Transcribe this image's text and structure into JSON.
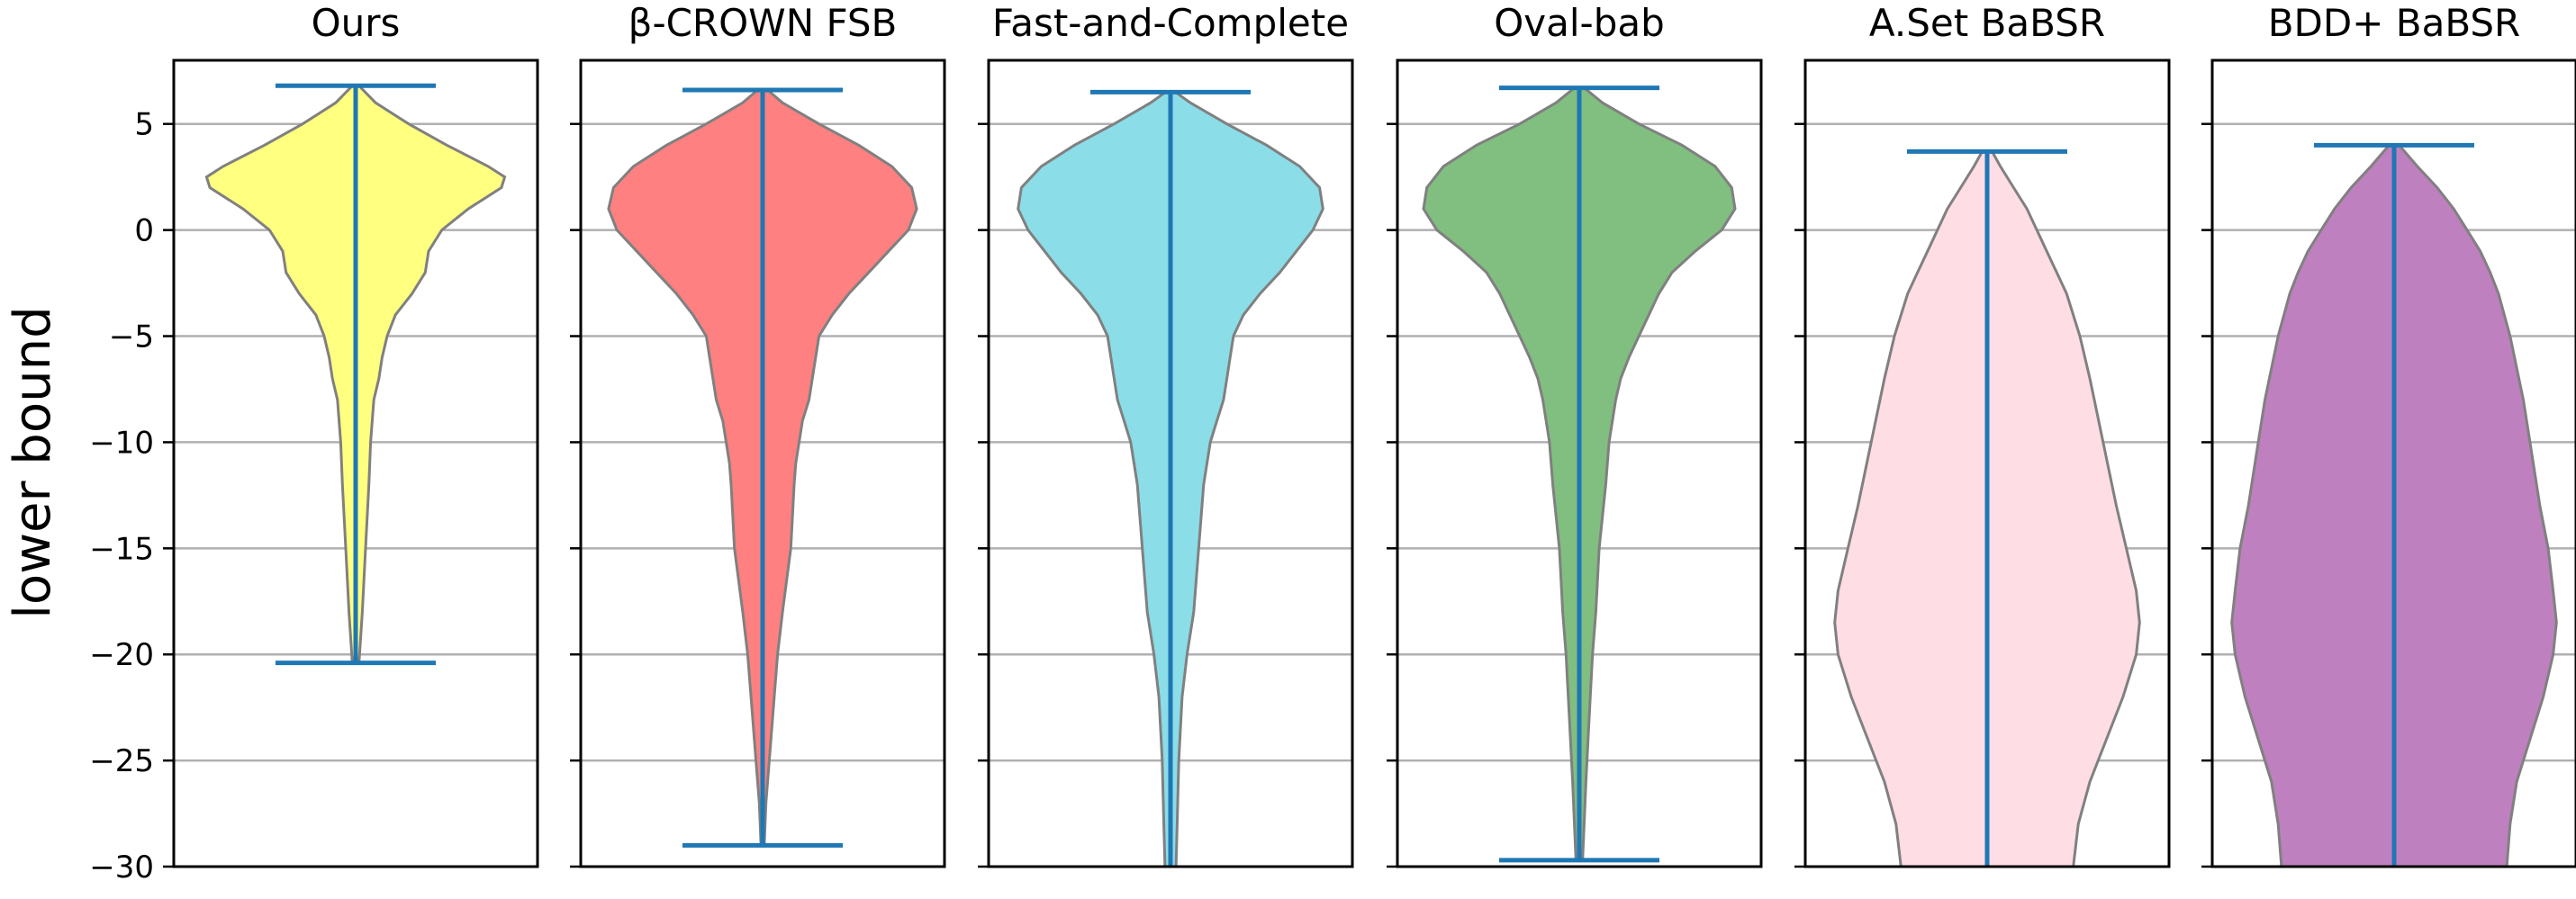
{
  "chart_data": {
    "type": "violin",
    "ylabel": "lower bound",
    "ylim": [
      -30,
      8
    ],
    "yticks": [
      5,
      0,
      -5,
      -10,
      -15,
      -20,
      -25,
      -30
    ],
    "ytick_labels": [
      "5",
      "0",
      "−5",
      "−10",
      "−15",
      "−20",
      "−25",
      "−30"
    ],
    "grid": "horizontal",
    "panels": [
      {
        "title": "Ours",
        "color": "#ffff80",
        "max": 6.8,
        "min": -20.4,
        "profile": [
          [
            6.8,
            0.02
          ],
          [
            6.0,
            0.12
          ],
          [
            5.0,
            0.32
          ],
          [
            4.0,
            0.55
          ],
          [
            3.0,
            0.8
          ],
          [
            2.5,
            0.9
          ],
          [
            2.0,
            0.88
          ],
          [
            1.0,
            0.68
          ],
          [
            0.0,
            0.52
          ],
          [
            -1.0,
            0.44
          ],
          [
            -2.0,
            0.42
          ],
          [
            -3.0,
            0.34
          ],
          [
            -4.0,
            0.24
          ],
          [
            -5.0,
            0.19
          ],
          [
            -6.0,
            0.16
          ],
          [
            -7.0,
            0.14
          ],
          [
            -8.0,
            0.11
          ],
          [
            -10.0,
            0.09
          ],
          [
            -12.0,
            0.08
          ],
          [
            -15.0,
            0.06
          ],
          [
            -18.0,
            0.04
          ],
          [
            -20.4,
            0.02
          ]
        ]
      },
      {
        "title": "β-CROWN FSB",
        "color": "#ff8080",
        "max": 6.6,
        "min": -29.0,
        "profile": [
          [
            6.6,
            0.03
          ],
          [
            6.0,
            0.12
          ],
          [
            5.0,
            0.34
          ],
          [
            4.0,
            0.58
          ],
          [
            3.0,
            0.78
          ],
          [
            2.0,
            0.9
          ],
          [
            1.0,
            0.93
          ],
          [
            0.0,
            0.88
          ],
          [
            -1.0,
            0.76
          ],
          [
            -2.0,
            0.64
          ],
          [
            -3.0,
            0.52
          ],
          [
            -4.0,
            0.42
          ],
          [
            -5.0,
            0.34
          ],
          [
            -6.0,
            0.32
          ],
          [
            -7.0,
            0.3
          ],
          [
            -8.0,
            0.28
          ],
          [
            -9.0,
            0.24
          ],
          [
            -10.0,
            0.22
          ],
          [
            -11.0,
            0.2
          ],
          [
            -12.0,
            0.19
          ],
          [
            -15.0,
            0.17
          ],
          [
            -18.0,
            0.12
          ],
          [
            -20.0,
            0.09
          ],
          [
            -22.0,
            0.07
          ],
          [
            -25.0,
            0.04
          ],
          [
            -27.0,
            0.02
          ],
          [
            -29.0,
            0.01
          ]
        ]
      },
      {
        "title": "Fast-and-Complete",
        "color": "#8bdde8",
        "max": 6.5,
        "min": -31.0,
        "profile": [
          [
            6.5,
            0.03
          ],
          [
            6.0,
            0.12
          ],
          [
            5.0,
            0.34
          ],
          [
            4.0,
            0.58
          ],
          [
            3.0,
            0.78
          ],
          [
            2.0,
            0.9
          ],
          [
            1.0,
            0.92
          ],
          [
            0.0,
            0.86
          ],
          [
            -1.0,
            0.76
          ],
          [
            -2.0,
            0.66
          ],
          [
            -3.0,
            0.54
          ],
          [
            -4.0,
            0.44
          ],
          [
            -5.0,
            0.38
          ],
          [
            -6.0,
            0.36
          ],
          [
            -7.0,
            0.34
          ],
          [
            -8.0,
            0.32
          ],
          [
            -9.0,
            0.28
          ],
          [
            -10.0,
            0.24
          ],
          [
            -11.0,
            0.22
          ],
          [
            -12.0,
            0.2
          ],
          [
            -15.0,
            0.17
          ],
          [
            -18.0,
            0.14
          ],
          [
            -20.0,
            0.1
          ],
          [
            -22.0,
            0.07
          ],
          [
            -25.0,
            0.05
          ],
          [
            -28.0,
            0.04
          ],
          [
            -31.0,
            0.03
          ]
        ]
      },
      {
        "title": "Oval-bab",
        "color": "#80bf80",
        "max": 6.7,
        "min": -29.7,
        "profile": [
          [
            6.7,
            0.03
          ],
          [
            6.0,
            0.14
          ],
          [
            5.0,
            0.36
          ],
          [
            4.0,
            0.62
          ],
          [
            3.0,
            0.82
          ],
          [
            2.0,
            0.92
          ],
          [
            1.0,
            0.94
          ],
          [
            0.0,
            0.86
          ],
          [
            -1.0,
            0.7
          ],
          [
            -2.0,
            0.56
          ],
          [
            -3.0,
            0.48
          ],
          [
            -4.0,
            0.42
          ],
          [
            -5.0,
            0.36
          ],
          [
            -6.0,
            0.3
          ],
          [
            -7.0,
            0.25
          ],
          [
            -8.0,
            0.22
          ],
          [
            -9.0,
            0.2
          ],
          [
            -10.0,
            0.18
          ],
          [
            -12.0,
            0.16
          ],
          [
            -15.0,
            0.12
          ],
          [
            -18.0,
            0.1
          ],
          [
            -20.0,
            0.08
          ],
          [
            -23.0,
            0.06
          ],
          [
            -26.0,
            0.04
          ],
          [
            -29.7,
            0.02
          ]
        ]
      },
      {
        "title": "A.Set BaBSR",
        "color": "#ffdde4",
        "max": 3.7,
        "min": -30.0,
        "profile": [
          [
            3.7,
            0.03
          ],
          [
            3.0,
            0.08
          ],
          [
            2.0,
            0.16
          ],
          [
            1.0,
            0.24
          ],
          [
            0.0,
            0.3
          ],
          [
            -1.0,
            0.36
          ],
          [
            -2.0,
            0.42
          ],
          [
            -3.0,
            0.48
          ],
          [
            -5.0,
            0.56
          ],
          [
            -7.0,
            0.62
          ],
          [
            -10.0,
            0.7
          ],
          [
            -13.0,
            0.78
          ],
          [
            -15.0,
            0.84
          ],
          [
            -17.0,
            0.9
          ],
          [
            -18.5,
            0.92
          ],
          [
            -20.0,
            0.9
          ],
          [
            -22.0,
            0.82
          ],
          [
            -24.0,
            0.72
          ],
          [
            -26.0,
            0.62
          ],
          [
            -28.0,
            0.55
          ],
          [
            -30.0,
            0.52
          ]
        ]
      },
      {
        "title": "BDD+ BaBSR",
        "color": "#bf80bf",
        "max": 4.0,
        "min": -30.0,
        "profile": [
          [
            4.0,
            0.03
          ],
          [
            3.0,
            0.14
          ],
          [
            2.0,
            0.26
          ],
          [
            1.0,
            0.36
          ],
          [
            0.0,
            0.44
          ],
          [
            -1.0,
            0.52
          ],
          [
            -2.0,
            0.58
          ],
          [
            -3.0,
            0.63
          ],
          [
            -5.0,
            0.7
          ],
          [
            -8.0,
            0.78
          ],
          [
            -10.0,
            0.82
          ],
          [
            -13.0,
            0.88
          ],
          [
            -15.0,
            0.93
          ],
          [
            -17.0,
            0.96
          ],
          [
            -18.5,
            0.98
          ],
          [
            -20.0,
            0.96
          ],
          [
            -22.0,
            0.9
          ],
          [
            -24.0,
            0.82
          ],
          [
            -26.0,
            0.74
          ],
          [
            -28.0,
            0.7
          ],
          [
            -30.0,
            0.68
          ]
        ]
      }
    ]
  }
}
